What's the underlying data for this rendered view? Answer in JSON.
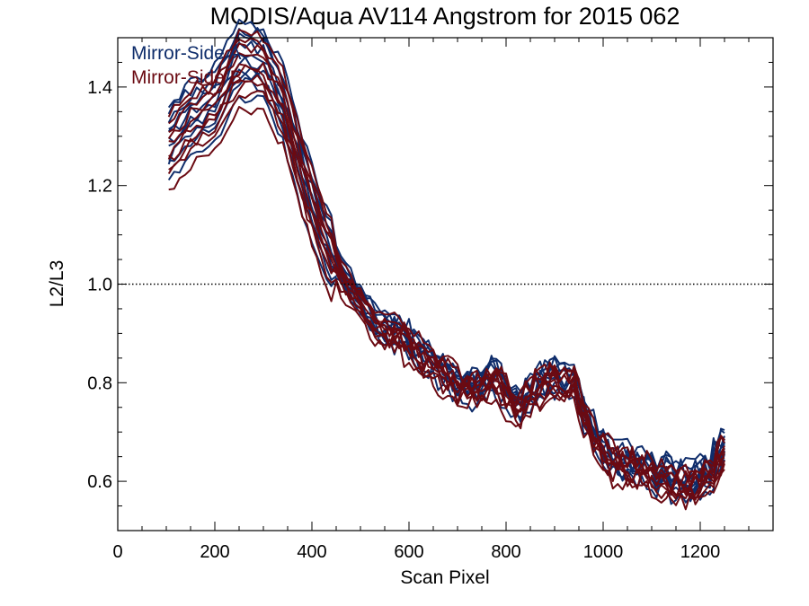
{
  "chart_data": {
    "type": "line",
    "title": "MODIS/Aqua AV114 Angstrom for 2015 062",
    "xlabel": "Scan Pixel",
    "ylabel": "L2/L3",
    "xlim": [
      0,
      1350
    ],
    "ylim": [
      0.5,
      1.5
    ],
    "xticks": [
      0,
      200,
      400,
      600,
      800,
      1000,
      1200
    ],
    "yticks": [
      0.6,
      0.8,
      1.0,
      1.2,
      1.4
    ],
    "xtick_labels": [
      "0",
      "200",
      "400",
      "600",
      "800",
      "1000",
      "1200"
    ],
    "ytick_labels": [
      "0.6",
      "0.8",
      "1.0",
      "1.2",
      "1.4"
    ],
    "reference_line": {
      "y": 1.0,
      "style": "dotted"
    },
    "grid": false,
    "legend_position": "top-left",
    "x": [
      105,
      150,
      200,
      250,
      300,
      340,
      380,
      420,
      460,
      500,
      540,
      580,
      620,
      660,
      700,
      740,
      780,
      820,
      860,
      900,
      940,
      980,
      1020,
      1060,
      1100,
      1140,
      1180,
      1220,
      1250
    ],
    "series": [
      {
        "name": "Mirror-Side A",
        "color": "#0f2d6b",
        "values": [
          1.3,
          1.35,
          1.38,
          1.47,
          1.46,
          1.38,
          1.24,
          1.12,
          1.03,
          0.97,
          0.92,
          0.91,
          0.87,
          0.84,
          0.8,
          0.8,
          0.82,
          0.75,
          0.8,
          0.82,
          0.8,
          0.7,
          0.65,
          0.64,
          0.63,
          0.61,
          0.6,
          0.63,
          0.68
        ]
      },
      {
        "name": "Mirror-Side B",
        "color": "#6b0a12",
        "values": [
          1.28,
          1.33,
          1.36,
          1.45,
          1.44,
          1.37,
          1.23,
          1.11,
          1.02,
          0.96,
          0.91,
          0.9,
          0.86,
          0.83,
          0.8,
          0.79,
          0.81,
          0.74,
          0.79,
          0.81,
          0.79,
          0.69,
          0.64,
          0.63,
          0.62,
          0.6,
          0.59,
          0.62,
          0.66
        ]
      }
    ]
  }
}
